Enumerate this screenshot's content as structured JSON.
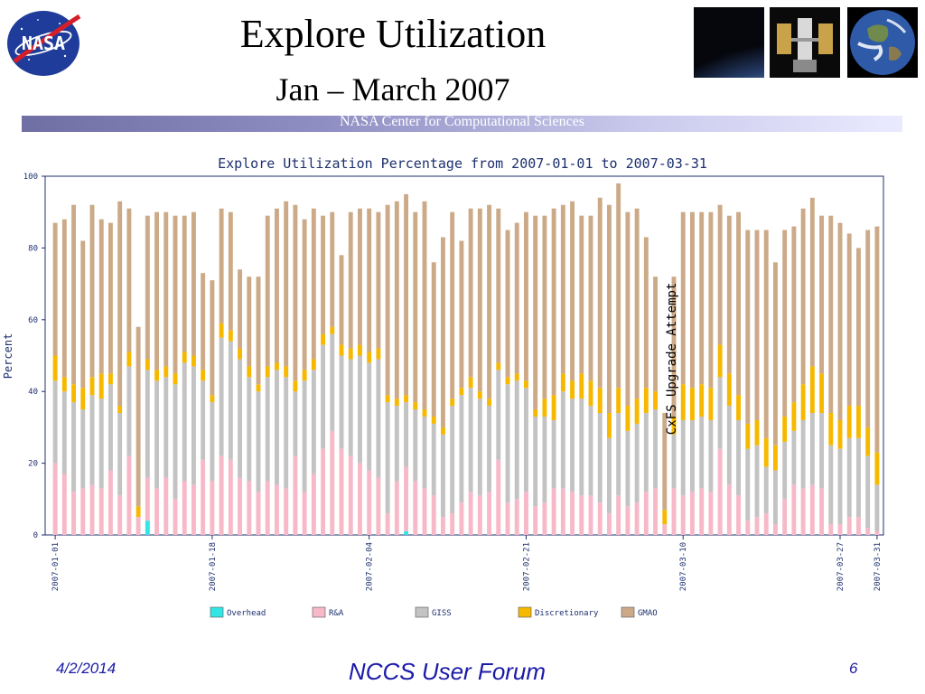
{
  "header": {
    "title": "Explore Utilization",
    "subtitle": "Jan – March 2007",
    "banner": "NASA Center for Computational Sciences",
    "logo_text": "NASA"
  },
  "footer": {
    "date": "4/2/2014",
    "center": "NCCS User Forum",
    "page": "6"
  },
  "chart_data": {
    "type": "bar",
    "stacked": true,
    "title": "Explore Utilization Percentage from 2007-01-01 to 2007-03-31",
    "ylabel": "Percent",
    "xlabel": "",
    "ylim": [
      0,
      100
    ],
    "yticks": [
      "0",
      "20",
      "40",
      "60",
      "80",
      "100"
    ],
    "grid": false,
    "legend_position": "bottom",
    "x_tick_labels": [
      {
        "index": 0,
        "label": "2007-01-01"
      },
      {
        "index": 17,
        "label": "2007-01-18"
      },
      {
        "index": 34,
        "label": "2007-02-04"
      },
      {
        "index": 51,
        "label": "2007-02-21"
      },
      {
        "index": 68,
        "label": "2007-03-10"
      },
      {
        "index": 85,
        "label": "2007-03-27"
      },
      {
        "index": 89,
        "label": "2007-03-31"
      }
    ],
    "annotation": {
      "text": "CxFS Upgrade Attempt",
      "index": 66
    },
    "categories": [
      "2007-01-01",
      "2007-01-02",
      "2007-01-03",
      "2007-01-04",
      "2007-01-05",
      "2007-01-06",
      "2007-01-07",
      "2007-01-08",
      "2007-01-09",
      "2007-01-10",
      "2007-01-11",
      "2007-01-12",
      "2007-01-13",
      "2007-01-14",
      "2007-01-15",
      "2007-01-16",
      "2007-01-17",
      "2007-01-18",
      "2007-01-19",
      "2007-01-20",
      "2007-01-21",
      "2007-01-22",
      "2007-01-23",
      "2007-01-24",
      "2007-01-25",
      "2007-01-26",
      "2007-01-27",
      "2007-01-28",
      "2007-01-29",
      "2007-01-30",
      "2007-01-31",
      "2007-02-01",
      "2007-02-02",
      "2007-02-03",
      "2007-02-04",
      "2007-02-05",
      "2007-02-06",
      "2007-02-07",
      "2007-02-08",
      "2007-02-09",
      "2007-02-10",
      "2007-02-11",
      "2007-02-12",
      "2007-02-13",
      "2007-02-14",
      "2007-02-15",
      "2007-02-16",
      "2007-02-17",
      "2007-02-18",
      "2007-02-19",
      "2007-02-20",
      "2007-02-21",
      "2007-02-22",
      "2007-02-23",
      "2007-02-24",
      "2007-02-25",
      "2007-02-26",
      "2007-02-27",
      "2007-02-28",
      "2007-03-01",
      "2007-03-02",
      "2007-03-03",
      "2007-03-04",
      "2007-03-05",
      "2007-03-06",
      "2007-03-07",
      "2007-03-08",
      "2007-03-09",
      "2007-03-10",
      "2007-03-11",
      "2007-03-12",
      "2007-03-13",
      "2007-03-14",
      "2007-03-15",
      "2007-03-16",
      "2007-03-17",
      "2007-03-18",
      "2007-03-19",
      "2007-03-20",
      "2007-03-21",
      "2007-03-22",
      "2007-03-23",
      "2007-03-24",
      "2007-03-25",
      "2007-03-26",
      "2007-03-27",
      "2007-03-28",
      "2007-03-29",
      "2007-03-30",
      "2007-03-31"
    ],
    "series": [
      {
        "name": "Overhead",
        "color": "#33e5e5",
        "values": [
          0,
          0,
          0,
          0,
          0,
          0,
          0,
          0,
          0,
          0,
          4,
          0,
          0,
          0,
          0,
          0,
          0,
          0,
          0,
          0,
          0,
          0,
          0,
          0,
          0,
          0,
          0,
          0,
          0,
          0,
          0,
          0,
          0,
          0,
          0,
          0,
          0,
          0,
          1,
          0,
          0,
          0,
          0,
          0,
          0,
          0,
          0,
          0,
          0,
          0,
          0,
          0,
          0,
          0,
          0,
          0,
          0,
          0,
          0,
          0,
          0,
          0,
          0,
          0,
          0,
          0,
          0,
          0,
          0,
          0,
          0,
          0,
          0,
          0,
          0,
          0,
          0,
          0,
          0,
          0,
          0,
          0,
          0,
          0,
          0,
          0,
          0,
          0,
          0,
          0
        ]
      },
      {
        "name": "R&A",
        "color": "#f7b8c8",
        "values": [
          20,
          17,
          12,
          13,
          14,
          13,
          18,
          11,
          22,
          5,
          12,
          13,
          16,
          10,
          15,
          14,
          21,
          15,
          22,
          21,
          16,
          15,
          12,
          15,
          14,
          13,
          22,
          12,
          17,
          24,
          29,
          24,
          22,
          20,
          18,
          16,
          6,
          15,
          18,
          15,
          13,
          11,
          5,
          6,
          9,
          12,
          11,
          12,
          21,
          9,
          10,
          12,
          8,
          9,
          13,
          13,
          12,
          11,
          11,
          9,
          6,
          11,
          8,
          9,
          12,
          13,
          3,
          13,
          11,
          12,
          13,
          12,
          24,
          14,
          11,
          4,
          5,
          6,
          3,
          10,
          14,
          13,
          14,
          13,
          3,
          3,
          5,
          5,
          2,
          1
        ]
      },
      {
        "name": "GISS",
        "color": "#c3c3c3",
        "values": [
          23,
          23,
          25,
          22,
          25,
          25,
          24,
          23,
          25,
          0,
          30,
          30,
          28,
          32,
          33,
          33,
          22,
          22,
          33,
          33,
          33,
          29,
          28,
          29,
          32,
          31,
          18,
          31,
          29,
          29,
          27,
          26,
          27,
          30,
          30,
          33,
          31,
          21,
          18,
          20,
          20,
          20,
          23,
          30,
          30,
          29,
          27,
          24,
          25,
          33,
          33,
          29,
          25,
          24,
          19,
          27,
          26,
          27,
          25,
          25,
          21,
          23,
          21,
          22,
          22,
          22,
          0,
          15,
          21,
          20,
          20,
          20,
          20,
          22,
          21,
          20,
          20,
          13,
          15,
          16,
          15,
          19,
          20,
          21,
          22,
          21,
          22,
          22,
          20,
          13
        ]
      },
      {
        "name": "Discretionary",
        "color": "#f7b800",
        "values": [
          7,
          4,
          5,
          6,
          5,
          7,
          3,
          2,
          4,
          3,
          3,
          3,
          3,
          3,
          3,
          3,
          3,
          2,
          4,
          3,
          3,
          3,
          2,
          3,
          2,
          3,
          3,
          3,
          3,
          3,
          2,
          3,
          3,
          3,
          3,
          3,
          2,
          2,
          2,
          2,
          2,
          2,
          2,
          2,
          2,
          3,
          2,
          2,
          2,
          2,
          2,
          2,
          2,
          5,
          7,
          5,
          5,
          7,
          7,
          7,
          7,
          7,
          7,
          7,
          7,
          5,
          4,
          5,
          10,
          9,
          9,
          9,
          9,
          9,
          7,
          7,
          7,
          8,
          7,
          7,
          8,
          10,
          13,
          11,
          9,
          8,
          9,
          9,
          8,
          9
        ]
      },
      {
        "name": "GMAO",
        "color": "#ccaa88",
        "values": [
          37,
          44,
          50,
          41,
          48,
          43,
          42,
          57,
          40,
          50,
          40,
          44,
          43,
          44,
          38,
          40,
          27,
          32,
          32,
          33,
          22,
          25,
          30,
          42,
          43,
          46,
          49,
          42,
          42,
          33,
          32,
          25,
          38,
          38,
          40,
          38,
          53,
          55,
          56,
          53,
          58,
          43,
          53,
          52,
          41,
          47,
          51,
          54,
          43,
          41,
          42,
          47,
          54,
          51,
          52,
          47,
          50,
          44,
          46,
          53,
          58,
          57,
          54,
          53,
          42,
          32,
          27,
          39,
          48,
          49,
          48,
          49,
          39,
          44,
          51,
          54,
          53,
          58,
          51,
          52,
          49,
          49,
          47,
          44,
          55,
          55,
          48,
          44,
          55,
          63
        ]
      }
    ]
  }
}
